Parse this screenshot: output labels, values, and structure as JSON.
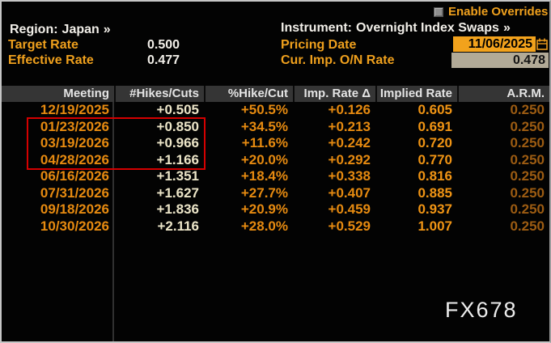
{
  "header": {
    "enable_overrides_label": "Enable Overrides",
    "region": {
      "label": "Region:",
      "value": "Japan",
      "arrow": "»"
    },
    "instrument": {
      "label": "Instrument:",
      "value": "Overnight Index Swaps",
      "arrow": "»"
    },
    "target_rate": {
      "label": "Target Rate",
      "value": "0.500"
    },
    "effective_rate": {
      "label": "Effective Rate",
      "value": "0.477"
    },
    "pricing_date": {
      "label": "Pricing Date",
      "value": "11/06/2025"
    },
    "cur_imp_on_rate": {
      "label": "Cur. Imp. O/N Rate",
      "value": "0.478"
    }
  },
  "table": {
    "columns": [
      "Meeting",
      "#Hikes/Cuts",
      "%Hike/Cut",
      "Imp. Rate Δ",
      "Implied Rate",
      "A.R.M."
    ],
    "column_keys": [
      "meeting",
      "hikes-cuts",
      "pct-hike-cut",
      "imp-rate-delta",
      "implied-rate",
      "arm"
    ],
    "rows": [
      [
        "12/19/2025",
        "+0.505",
        "+50.5%",
        "+0.126",
        "0.605",
        "0.250"
      ],
      [
        "01/23/2026",
        "+0.850",
        "+34.5%",
        "+0.213",
        "0.691",
        "0.250"
      ],
      [
        "03/19/2026",
        "+0.966",
        "+11.6%",
        "+0.242",
        "0.720",
        "0.250"
      ],
      [
        "04/28/2026",
        "+1.166",
        "+20.0%",
        "+0.292",
        "0.770",
        "0.250"
      ],
      [
        "06/16/2026",
        "+1.351",
        "+18.4%",
        "+0.338",
        "0.816",
        "0.250"
      ],
      [
        "07/31/2026",
        "+1.627",
        "+27.7%",
        "+0.407",
        "0.885",
        "0.250"
      ],
      [
        "09/18/2026",
        "+1.836",
        "+20.9%",
        "+0.459",
        "0.937",
        "0.250"
      ],
      [
        "10/30/2026",
        "+2.116",
        "+28.0%",
        "+0.529",
        "1.007",
        "0.250"
      ]
    ],
    "highlighted_rows": [
      1,
      2,
      3
    ]
  },
  "annotation": {
    "highlight_color": "#d40000"
  },
  "watermark": "FX678",
  "colors": {
    "label_amber": "#efa01d",
    "value_white": "#f2efe9",
    "date_orange": "#e68a10",
    "hikes_cream": "#ece5c8",
    "arm_orange": "#9d5c12",
    "pricing_field_bg": "#f2a21c",
    "rate_field_bg": "#b2aa97",
    "header_bg": "#353535"
  }
}
